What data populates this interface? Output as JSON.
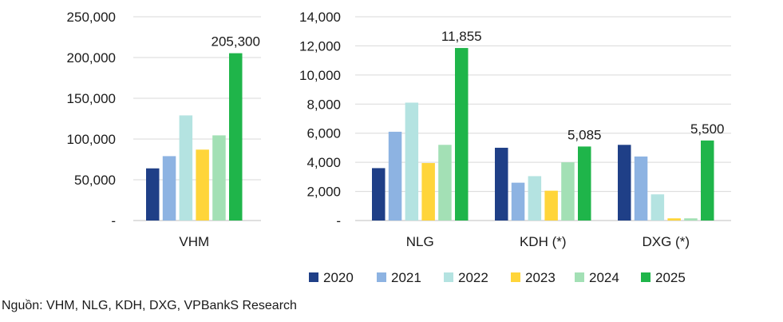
{
  "chart_data": [
    {
      "type": "bar",
      "categories": [
        "VHM"
      ],
      "series": [
        {
          "name": "2020",
          "values": [
            64000
          ]
        },
        {
          "name": "2021",
          "values": [
            79000
          ]
        },
        {
          "name": "2022",
          "values": [
            129000
          ]
        },
        {
          "name": "2023",
          "values": [
            87000
          ]
        },
        {
          "name": "2024",
          "values": [
            104500
          ]
        },
        {
          "name": "2025",
          "values": [
            205300
          ]
        }
      ],
      "ylim": [
        0,
        250000
      ],
      "yticks": [
        "250,000",
        "200,000",
        "150,000",
        "100,000",
        "50,000",
        "-"
      ],
      "data_labels": [
        {
          "category": "VHM",
          "series": "2025",
          "text": "205,300"
        }
      ],
      "grid": true
    },
    {
      "type": "bar",
      "categories": [
        "NLG",
        "KDH (*)",
        "DXG (*)"
      ],
      "series": [
        {
          "name": "2020",
          "values": [
            3600,
            5000,
            5200
          ]
        },
        {
          "name": "2021",
          "values": [
            6100,
            2600,
            4400
          ]
        },
        {
          "name": "2022",
          "values": [
            8100,
            3050,
            1800
          ]
        },
        {
          "name": "2023",
          "values": [
            3950,
            2050,
            150
          ]
        },
        {
          "name": "2024",
          "values": [
            5200,
            4000,
            150
          ]
        },
        {
          "name": "2025",
          "values": [
            11855,
            5085,
            5500
          ]
        }
      ],
      "ylim": [
        0,
        14000
      ],
      "yticks": [
        "14,000",
        "12,000",
        "10,000",
        "8,000",
        "6,000",
        "4,000",
        "2,000",
        "-"
      ],
      "data_labels": [
        {
          "category": "NLG",
          "series": "2025",
          "text": "11,855"
        },
        {
          "category": "KDH (*)",
          "series": "2025",
          "text": "5,085"
        },
        {
          "category": "DXG (*)",
          "series": "2025",
          "text": "5,500"
        }
      ],
      "grid": true
    }
  ],
  "legend": {
    "items": [
      "2020",
      "2021",
      "2022",
      "2023",
      "2024",
      "2025"
    ],
    "colors": [
      "#1f3f87",
      "#8db3e2",
      "#b4e3e1",
      "#ffd53a",
      "#a3e0b5",
      "#1fb54a"
    ],
    "placement": "bottom"
  },
  "source": "Nguồn: VHM, NLG, KDH, DXG, VPBankS Research"
}
